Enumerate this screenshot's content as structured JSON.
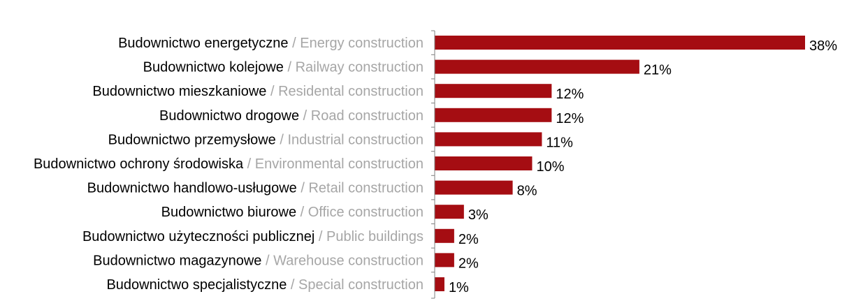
{
  "chart_data": {
    "type": "bar",
    "orientation": "horizontal",
    "title": "",
    "xlabel": "",
    "ylabel": "",
    "categories": [
      {
        "pl": "Budownictwo energetyczne",
        "en": "Energy construction"
      },
      {
        "pl": "Budownictwo kolejowe",
        "en": "Railway construction"
      },
      {
        "pl": "Budownictwo mieszkaniowe",
        "en": "Residental construction"
      },
      {
        "pl": "Budownictwo drogowe",
        "en": "Road construction"
      },
      {
        "pl": "Budownictwo przemysłowe",
        "en": "Industrial construction"
      },
      {
        "pl": "Budownictwo ochrony środowiska",
        "en": "Environmental construction"
      },
      {
        "pl": "Budownictwo handlowo-usługowe",
        "en": "Retail construction"
      },
      {
        "pl": "Budownictwo biurowe",
        "en": "Office construction"
      },
      {
        "pl": "Budownictwo użyteczności publicznej",
        "en": "Public buildings"
      },
      {
        "pl": "Budownictwo magazynowe",
        "en": "Warehouse construction"
      },
      {
        "pl": "Budownictwo specjalistyczne",
        "en": "Special construction"
      }
    ],
    "values": [
      38,
      21,
      12,
      12,
      11,
      10,
      8,
      3,
      2,
      2,
      1
    ],
    "value_labels": [
      "38%",
      "21%",
      "12%",
      "12%",
      "11%",
      "10%",
      "8%",
      "3%",
      "2%",
      "2%",
      "1%"
    ],
    "separator": "/",
    "xlim": [
      0,
      38
    ],
    "grid": false,
    "legend": "none",
    "colors": {
      "bar": "#a50d12",
      "label_pl": "#000000",
      "label_en": "#a6a6a6",
      "axis": "#7f7f7f"
    }
  }
}
